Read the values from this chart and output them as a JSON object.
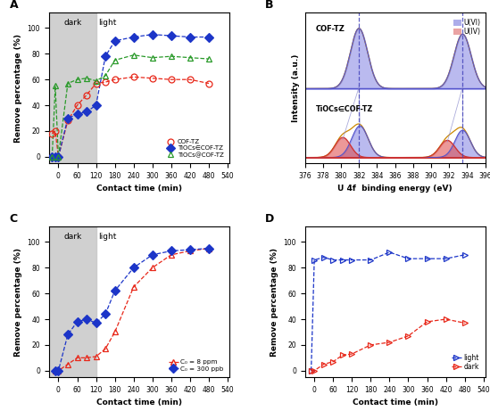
{
  "panel_A": {
    "xlabel": "Contact time (min)",
    "ylabel": "Remove percentage (%)",
    "dark_end": 120,
    "xlim": [
      -30,
      545
    ],
    "ylim": [
      -5,
      112
    ],
    "xticks": [
      0,
      60,
      120,
      180,
      240,
      300,
      360,
      420,
      480,
      540
    ],
    "yticks": [
      0,
      20,
      40,
      60,
      80,
      100
    ],
    "cof_tz_x": [
      -20,
      -10,
      0,
      30,
      60,
      90,
      120,
      150,
      180,
      240,
      300,
      360,
      420,
      480
    ],
    "cof_tz_y": [
      18,
      20,
      0,
      28,
      40,
      48,
      57,
      58,
      60,
      62,
      61,
      60,
      60,
      57
    ],
    "tiocs_cof_x": [
      -20,
      -10,
      0,
      30,
      60,
      90,
      120,
      150,
      180,
      240,
      300,
      360,
      420,
      480
    ],
    "tiocs_cof_y": [
      0,
      0,
      0,
      30,
      33,
      35,
      40,
      78,
      90,
      93,
      95,
      94,
      93,
      93
    ],
    "tiocs_at_cof_x": [
      -20,
      -10,
      0,
      30,
      60,
      90,
      120,
      150,
      180,
      240,
      300,
      360,
      420,
      480
    ],
    "tiocs_at_cof_y": [
      0,
      55,
      0,
      57,
      60,
      61,
      59,
      63,
      75,
      79,
      77,
      78,
      77,
      76
    ],
    "cof_color": "#e8281a",
    "tiocs_cof_color": "#1c35c8",
    "tiocs_at_cof_color": "#2a9a2a",
    "legend": [
      "COF-TZ",
      "TiOCs∈COF-TZ",
      "TiOCs@COF-TZ"
    ]
  },
  "panel_B": {
    "xlabel": "U 4f  binding energy (eV)",
    "ylabel": "Intensity (a.u.)",
    "xlim": [
      376,
      396
    ],
    "xticks": [
      376,
      378,
      380,
      382,
      384,
      386,
      388,
      390,
      392,
      394,
      396
    ],
    "vline1": 382,
    "vline2": 393.5,
    "cof_label": "COF-TZ",
    "tiocs_label": "TiOCs∈COF-TZ",
    "uvi_color": "#4444cc",
    "uiv_color": "#cc4444"
  },
  "panel_C": {
    "xlabel": "Contact time (min)",
    "ylabel": "Remove percentage (%)",
    "dark_end": 120,
    "xlim": [
      -30,
      545
    ],
    "ylim": [
      -5,
      112
    ],
    "xticks": [
      0,
      60,
      120,
      180,
      240,
      300,
      360,
      420,
      480,
      540
    ],
    "yticks": [
      0,
      20,
      40,
      60,
      80,
      100
    ],
    "c8ppm_x": [
      -10,
      0,
      30,
      60,
      90,
      120,
      150,
      180,
      240,
      300,
      360,
      420,
      480
    ],
    "c8ppm_y": [
      0,
      0,
      5,
      10,
      10,
      11,
      17,
      30,
      65,
      80,
      90,
      93,
      95
    ],
    "c300ppb_x": [
      -10,
      0,
      30,
      60,
      90,
      120,
      150,
      180,
      240,
      300,
      360,
      420,
      480
    ],
    "c300ppb_y": [
      0,
      0,
      28,
      38,
      40,
      37,
      44,
      62,
      80,
      90,
      93,
      94,
      95
    ],
    "c8_color": "#e8281a",
    "c300_color": "#1c35c8",
    "legend": [
      "C₀ = 8 ppm",
      "C₀ = 300 ppb"
    ]
  },
  "panel_D": {
    "xlabel": "Contact time (min)",
    "ylabel": "Remove percentage (%)",
    "xlim": [
      -30,
      545
    ],
    "ylim": [
      -5,
      112
    ],
    "xticks": [
      0,
      60,
      120,
      180,
      240,
      300,
      360,
      420,
      480,
      540
    ],
    "yticks": [
      0,
      20,
      40,
      60,
      80,
      100
    ],
    "light_x": [
      -10,
      0,
      30,
      60,
      90,
      120,
      180,
      240,
      300,
      360,
      420,
      480
    ],
    "light_y": [
      0,
      86,
      88,
      86,
      86,
      86,
      86,
      92,
      87,
      87,
      87,
      90
    ],
    "dark_x": [
      -10,
      0,
      30,
      60,
      90,
      120,
      180,
      240,
      300,
      360,
      420,
      480
    ],
    "dark_y": [
      0,
      0,
      5,
      7,
      12,
      13,
      20,
      22,
      27,
      38,
      40,
      37
    ],
    "light_color": "#1c35c8",
    "dark_color": "#e8281a",
    "legend": [
      "light",
      "dark"
    ]
  }
}
